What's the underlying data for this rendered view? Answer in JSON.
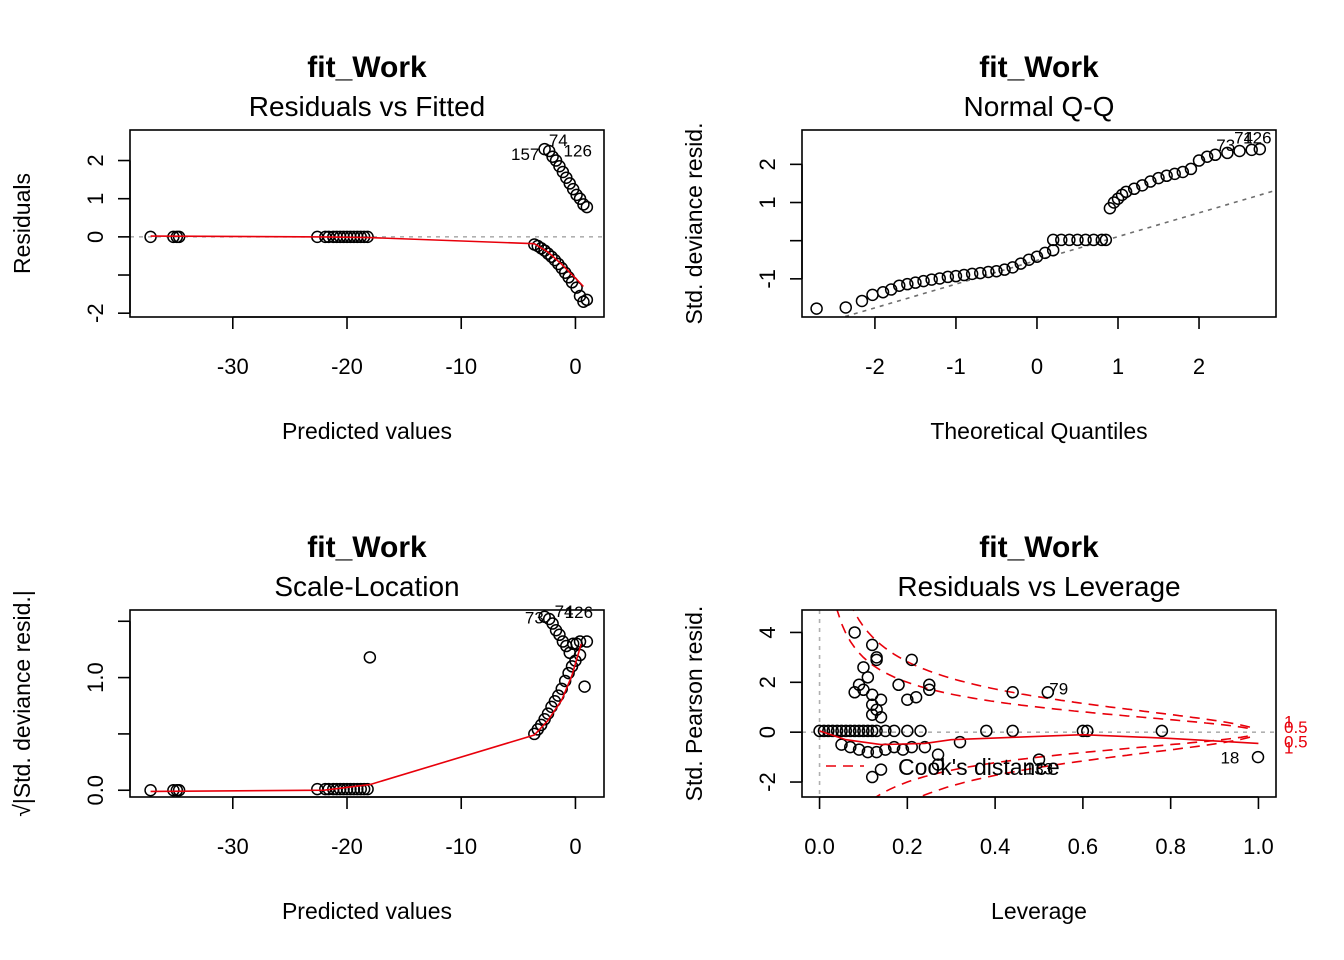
{
  "chart_data": [
    {
      "id": "p1",
      "type": "scatter",
      "title": "fit_Work",
      "subtitle": "Residuals vs Fitted",
      "xlabel": "Predicted values",
      "ylabel": "Residuals",
      "xlim": [
        -39.0,
        2.5
      ],
      "ylim": [
        -2.1,
        2.8
      ],
      "xticks": [
        -30,
        -20,
        -10,
        0
      ],
      "yticks": [
        -2,
        -1,
        0,
        1,
        2
      ],
      "ytick_labels": [
        "-2",
        "",
        "0",
        "1",
        "2"
      ],
      "ref_line": {
        "type": "h",
        "value": 0
      },
      "points": [
        [
          -37.2,
          0
        ],
        [
          -35.2,
          0
        ],
        [
          -34.9,
          0
        ],
        [
          -34.7,
          0
        ],
        [
          -22.6,
          0
        ],
        [
          -21.9,
          0
        ],
        [
          -21.6,
          0
        ],
        [
          -21.2,
          0
        ],
        [
          -20.9,
          0
        ],
        [
          -20.6,
          0
        ],
        [
          -20.3,
          0
        ],
        [
          -20.0,
          0
        ],
        [
          -19.7,
          0
        ],
        [
          -19.4,
          0
        ],
        [
          -19.1,
          0
        ],
        [
          -18.8,
          0
        ],
        [
          -18.5,
          0
        ],
        [
          -18.2,
          0
        ],
        [
          -3.6,
          -0.2
        ],
        [
          -3.3,
          -0.24
        ],
        [
          -3.0,
          -0.3
        ],
        [
          -2.7,
          -0.36
        ],
        [
          -2.4,
          -0.44
        ],
        [
          -2.1,
          -0.52
        ],
        [
          -1.8,
          -0.61
        ],
        [
          -1.5,
          -0.71
        ],
        [
          -1.2,
          -0.82
        ],
        [
          -0.9,
          -0.94
        ],
        [
          -0.6,
          -1.06
        ],
        [
          -0.3,
          -1.19
        ],
        [
          0.1,
          -1.33
        ],
        [
          0.4,
          -1.55
        ],
        [
          0.7,
          -1.7
        ],
        [
          1.0,
          -1.65
        ],
        [
          -2.7,
          2.3
        ],
        [
          -2.3,
          2.25
        ],
        [
          -2.0,
          2.1
        ],
        [
          -1.7,
          2.0
        ],
        [
          -1.4,
          1.85
        ],
        [
          -1.1,
          1.7
        ],
        [
          -0.8,
          1.55
        ],
        [
          -0.5,
          1.4
        ],
        [
          -0.2,
          1.25
        ],
        [
          0.1,
          1.1
        ],
        [
          0.4,
          1.0
        ],
        [
          0.7,
          0.85
        ],
        [
          1.0,
          0.78
        ]
      ],
      "smooth": [
        [
          -37.2,
          0.02
        ],
        [
          -22,
          0.0
        ],
        [
          -18,
          -0.02
        ],
        [
          -3.6,
          -0.18
        ],
        [
          -2.4,
          -0.4
        ],
        [
          -1.2,
          -0.72
        ],
        [
          0,
          -1.08
        ],
        [
          0.7,
          -1.3
        ]
      ],
      "point_labels": [
        {
          "text": "74",
          "x": -1.5,
          "y": 2.38
        },
        {
          "text": "157",
          "x": -4.4,
          "y": 2.02
        },
        {
          "text": "126",
          "x": 0.2,
          "y": 2.1
        }
      ]
    },
    {
      "id": "p2",
      "type": "scatter",
      "title": "fit_Work",
      "subtitle": "Normal Q-Q",
      "xlabel": "Theoretical Quantiles",
      "ylabel": "Std. deviance resid.",
      "xlim": [
        -2.9,
        2.95
      ],
      "ylim": [
        -2.0,
        2.9
      ],
      "xticks": [
        -2,
        -1,
        0,
        1,
        2
      ],
      "yticks": [
        -1,
        0,
        1,
        2
      ],
      "ytick_labels": [
        "-1",
        "",
        "1",
        "2"
      ],
      "qq_line": [
        [
          -2.9,
          -2.32
        ],
        [
          2.95,
          1.32
        ]
      ],
      "points": [
        [
          -2.72,
          -1.78
        ],
        [
          -2.36,
          -1.75
        ],
        [
          -2.16,
          -1.58
        ],
        [
          -2.03,
          -1.42
        ],
        [
          -1.9,
          -1.35
        ],
        [
          -1.8,
          -1.28
        ],
        [
          -1.7,
          -1.18
        ],
        [
          -1.6,
          -1.14
        ],
        [
          -1.5,
          -1.1
        ],
        [
          -1.4,
          -1.06
        ],
        [
          -1.3,
          -1.02
        ],
        [
          -1.2,
          -0.99
        ],
        [
          -1.1,
          -0.95
        ],
        [
          -1.0,
          -0.93
        ],
        [
          -0.9,
          -0.9
        ],
        [
          -0.8,
          -0.87
        ],
        [
          -0.7,
          -0.85
        ],
        [
          -0.6,
          -0.82
        ],
        [
          -0.5,
          -0.8
        ],
        [
          -0.4,
          -0.76
        ],
        [
          -0.3,
          -0.7
        ],
        [
          -0.2,
          -0.6
        ],
        [
          -0.1,
          -0.5
        ],
        [
          0.0,
          -0.42
        ],
        [
          0.1,
          -0.32
        ],
        [
          0.2,
          -0.25
        ],
        [
          0.2,
          0.02
        ],
        [
          0.3,
          0.02
        ],
        [
          0.4,
          0.02
        ],
        [
          0.5,
          0.02
        ],
        [
          0.6,
          0.02
        ],
        [
          0.7,
          0.02
        ],
        [
          0.8,
          0.02
        ],
        [
          0.85,
          0.02
        ],
        [
          0.9,
          0.85
        ],
        [
          0.95,
          1.0
        ],
        [
          1.0,
          1.1
        ],
        [
          1.05,
          1.2
        ],
        [
          1.1,
          1.28
        ],
        [
          1.2,
          1.36
        ],
        [
          1.3,
          1.45
        ],
        [
          1.4,
          1.55
        ],
        [
          1.5,
          1.64
        ],
        [
          1.6,
          1.7
        ],
        [
          1.7,
          1.75
        ],
        [
          1.8,
          1.8
        ],
        [
          1.9,
          1.88
        ],
        [
          2.0,
          2.1
        ],
        [
          2.1,
          2.2
        ],
        [
          2.2,
          2.25
        ],
        [
          2.35,
          2.3
        ],
        [
          2.5,
          2.35
        ],
        [
          2.65,
          2.38
        ],
        [
          2.75,
          2.4
        ]
      ],
      "point_labels": [
        {
          "text": "74",
          "x": 2.55,
          "y": 2.55
        },
        {
          "text": "126",
          "x": 2.72,
          "y": 2.55
        },
        {
          "text": "73",
          "x": 2.33,
          "y": 2.35
        }
      ]
    },
    {
      "id": "p3",
      "type": "scatter",
      "title": "fit_Work",
      "subtitle": "Scale-Location",
      "xlabel": "Predicted values",
      "ylabel": "√|Std. deviance resid.|",
      "xlim": [
        -39.0,
        2.5
      ],
      "ylim": [
        -0.06,
        1.6
      ],
      "xticks": [
        -30,
        -20,
        -10,
        0
      ],
      "yticks": [
        0.0,
        0.5,
        1.0,
        1.5
      ],
      "ytick_labels": [
        "0.0",
        "",
        "1.0",
        ""
      ],
      "points": [
        [
          -37.2,
          0
        ],
        [
          -35.2,
          0
        ],
        [
          -34.9,
          0
        ],
        [
          -34.7,
          0
        ],
        [
          -22.6,
          0.01
        ],
        [
          -21.9,
          0.01
        ],
        [
          -21.6,
          0.01
        ],
        [
          -21.2,
          0.01
        ],
        [
          -20.9,
          0.01
        ],
        [
          -20.6,
          0.01
        ],
        [
          -20.3,
          0.01
        ],
        [
          -20.0,
          0.01
        ],
        [
          -19.7,
          0.01
        ],
        [
          -19.4,
          0.01
        ],
        [
          -19.1,
          0.01
        ],
        [
          -18.8,
          0.01
        ],
        [
          -18.5,
          0.01
        ],
        [
          -18.2,
          0.01
        ],
        [
          -18.0,
          1.18
        ],
        [
          -3.6,
          0.5
        ],
        [
          -3.3,
          0.54
        ],
        [
          -3.0,
          0.58
        ],
        [
          -2.7,
          0.63
        ],
        [
          -2.4,
          0.68
        ],
        [
          -2.1,
          0.74
        ],
        [
          -1.8,
          0.79
        ],
        [
          -1.5,
          0.84
        ],
        [
          -1.2,
          0.9
        ],
        [
          -0.9,
          0.97
        ],
        [
          -0.6,
          1.04
        ],
        [
          -0.3,
          1.1
        ],
        [
          0.0,
          1.15
        ],
        [
          0.4,
          1.2
        ],
        [
          0.8,
          0.92
        ],
        [
          -2.7,
          1.54
        ],
        [
          -2.3,
          1.52
        ],
        [
          -2.0,
          1.48
        ],
        [
          -1.7,
          1.42
        ],
        [
          -1.4,
          1.38
        ],
        [
          -1.1,
          1.32
        ],
        [
          -0.8,
          1.28
        ],
        [
          -0.5,
          1.22
        ],
        [
          -0.2,
          1.3
        ],
        [
          0.1,
          1.3
        ],
        [
          0.4,
          1.32
        ],
        [
          1.0,
          1.32
        ]
      ],
      "smooth": [
        [
          -37.2,
          -0.01
        ],
        [
          -22,
          0.0
        ],
        [
          -18,
          0.05
        ],
        [
          -3.6,
          0.49
        ],
        [
          -2.4,
          0.62
        ],
        [
          -1.2,
          0.8
        ],
        [
          -0.3,
          1.02
        ],
        [
          0.5,
          1.3
        ]
      ],
      "point_labels": [
        {
          "text": "73",
          "x": -3.6,
          "y": 1.48
        },
        {
          "text": "74",
          "x": -1.0,
          "y": 1.54
        },
        {
          "text": "126",
          "x": 0.3,
          "y": 1.53
        }
      ]
    },
    {
      "id": "p4",
      "type": "scatter",
      "title": "fit_Work",
      "subtitle": "Residuals vs Leverage",
      "xlabel": "Leverage",
      "ylabel": "Std. Pearson resid.",
      "xlim": [
        -0.04,
        1.04
      ],
      "ylim": [
        -2.6,
        4.9
      ],
      "xticks": [
        0.0,
        0.2,
        0.4,
        0.6,
        0.8,
        1.0
      ],
      "yticks": [
        -2,
        0,
        2,
        4
      ],
      "ref_h": 0,
      "ref_v": 0,
      "points": [
        [
          0.0,
          0.05
        ],
        [
          0.01,
          0.05
        ],
        [
          0.02,
          0.05
        ],
        [
          0.03,
          0.05
        ],
        [
          0.04,
          0.05
        ],
        [
          0.05,
          0.05
        ],
        [
          0.06,
          0.05
        ],
        [
          0.07,
          0.05
        ],
        [
          0.08,
          0.05
        ],
        [
          0.09,
          0.05
        ],
        [
          0.1,
          0.05
        ],
        [
          0.11,
          0.05
        ],
        [
          0.12,
          0.05
        ],
        [
          0.13,
          0.05
        ],
        [
          0.15,
          0.05
        ],
        [
          0.17,
          0.05
        ],
        [
          0.2,
          0.05
        ],
        [
          0.23,
          0.05
        ],
        [
          0.05,
          -0.5
        ],
        [
          0.07,
          -0.6
        ],
        [
          0.09,
          -0.7
        ],
        [
          0.11,
          -0.8
        ],
        [
          0.13,
          -0.8
        ],
        [
          0.15,
          -0.7
        ],
        [
          0.17,
          -0.6
        ],
        [
          0.19,
          -0.7
        ],
        [
          0.21,
          -0.6
        ],
        [
          0.24,
          -0.6
        ],
        [
          0.12,
          -1.8
        ],
        [
          0.14,
          -1.5
        ],
        [
          0.27,
          -1.3
        ],
        [
          0.27,
          -0.9
        ],
        [
          0.32,
          -0.4
        ],
        [
          0.38,
          0.05
        ],
        [
          0.44,
          0.05
        ],
        [
          0.6,
          0.05
        ],
        [
          0.61,
          0.05
        ],
        [
          0.78,
          0.05
        ],
        [
          0.5,
          -1.1
        ],
        [
          0.08,
          4.0
        ],
        [
          0.12,
          3.5
        ],
        [
          0.13,
          3.0
        ],
        [
          0.13,
          2.9
        ],
        [
          0.1,
          2.6
        ],
        [
          0.11,
          2.2
        ],
        [
          0.09,
          1.9
        ],
        [
          0.1,
          1.7
        ],
        [
          0.08,
          1.6
        ],
        [
          0.12,
          1.5
        ],
        [
          0.14,
          1.3
        ],
        [
          0.12,
          1.1
        ],
        [
          0.13,
          0.9
        ],
        [
          0.12,
          0.7
        ],
        [
          0.14,
          0.6
        ],
        [
          0.18,
          1.9
        ],
        [
          0.21,
          2.9
        ],
        [
          0.25,
          1.7
        ],
        [
          0.25,
          1.9
        ],
        [
          0.2,
          1.3
        ],
        [
          0.22,
          1.4
        ],
        [
          0.44,
          1.6
        ],
        [
          0.52,
          1.6
        ],
        [
          0.999,
          -1.0
        ]
      ],
      "smooth": [
        [
          0.0,
          0.05
        ],
        [
          0.06,
          -0.3
        ],
        [
          0.14,
          -0.5
        ],
        [
          0.24,
          -0.45
        ],
        [
          0.3,
          -0.3
        ],
        [
          0.45,
          -0.2
        ],
        [
          0.6,
          -0.1
        ],
        [
          0.8,
          -0.25
        ],
        [
          1.0,
          -0.45
        ]
      ],
      "point_labels": [
        {
          "text": "79",
          "x": 0.545,
          "y": 1.52
        },
        {
          "text": "133",
          "x": 0.5,
          "y": -1.7
        },
        {
          "text": "18",
          "x": 0.935,
          "y": -1.25
        }
      ],
      "cook_labels": [
        {
          "text": "1",
          "y": 0.42
        },
        {
          "text": "0.5",
          "y": 0.2
        },
        {
          "text": "0.5",
          "y": -0.38
        },
        {
          "text": "1",
          "y": -0.62
        }
      ],
      "legend": {
        "text": "Cook's distance",
        "placement": "bottom-left"
      }
    }
  ],
  "colors": {
    "smooth": "#e8000b",
    "ref": "#b0b0b0",
    "qq": "#6e6e6e",
    "points": "#000000"
  }
}
